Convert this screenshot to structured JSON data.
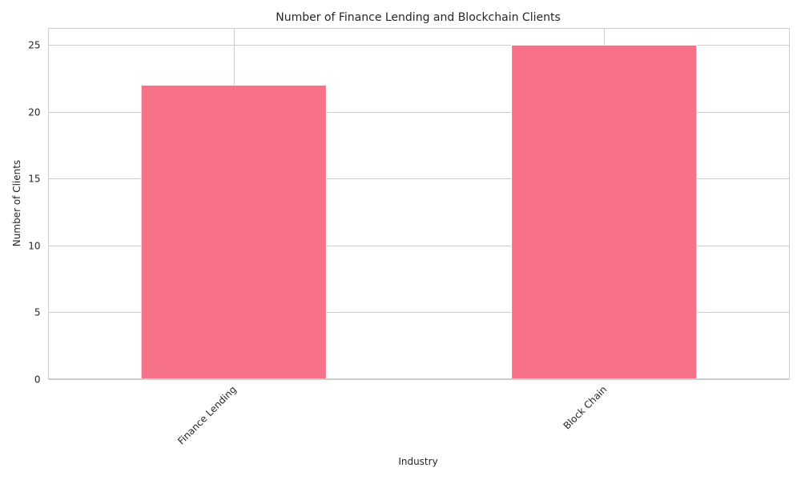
{
  "chart_data": {
    "type": "bar",
    "title": "Number of Finance Lending and Blockchain Clients",
    "xlabel": "Industry",
    "ylabel": "Number of Clients",
    "categories": [
      "Finance Lending",
      "Block Chain"
    ],
    "values": [
      22,
      25
    ],
    "ylim": [
      0,
      26.25
    ],
    "yticks": [
      0,
      5,
      10,
      15,
      20,
      25
    ],
    "grid": true,
    "x_tick_rotation_deg": 45,
    "bar_color": "#f77189",
    "grid_color": "#cccccc",
    "text_color": "#262626"
  }
}
